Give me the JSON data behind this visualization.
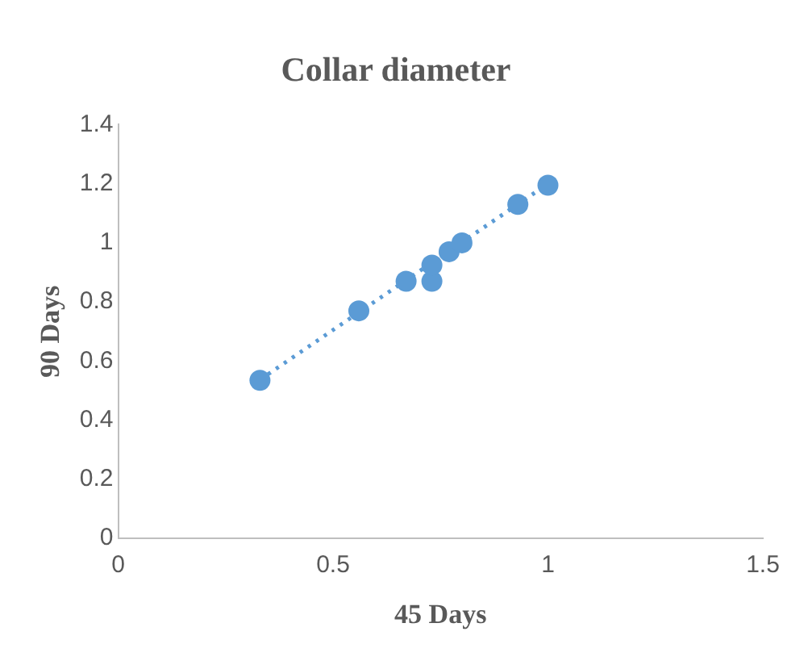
{
  "chart_data": {
    "type": "scatter",
    "title": "Collar diameter",
    "xlabel": "45 Days",
    "ylabel": "90 Days",
    "xlim": [
      0,
      1.5
    ],
    "xticks": [
      0,
      0.5,
      1,
      1.5
    ],
    "ylim": [
      0,
      1.4
    ],
    "yticks": [
      0,
      0.2,
      0.4,
      0.6,
      0.8,
      1,
      1.2,
      1.4
    ],
    "grid": false,
    "legend": false,
    "marker": "circle",
    "series": [
      {
        "color": "#5b9bd5",
        "x": [
          0.33,
          0.56,
          0.67,
          0.73,
          0.73,
          0.77,
          0.8,
          0.93,
          1.0
        ],
        "values": [
          0.535,
          0.77,
          0.87,
          0.87,
          0.925,
          0.97,
          1.0,
          1.13,
          1.195
        ]
      },
      {
        "type": "line",
        "color": "#5b9bd5",
        "line_style": "dotted",
        "marker": "none",
        "x": [
          0.33,
          1.0
        ],
        "values": [
          0.537,
          1.2
        ]
      }
    ]
  }
}
